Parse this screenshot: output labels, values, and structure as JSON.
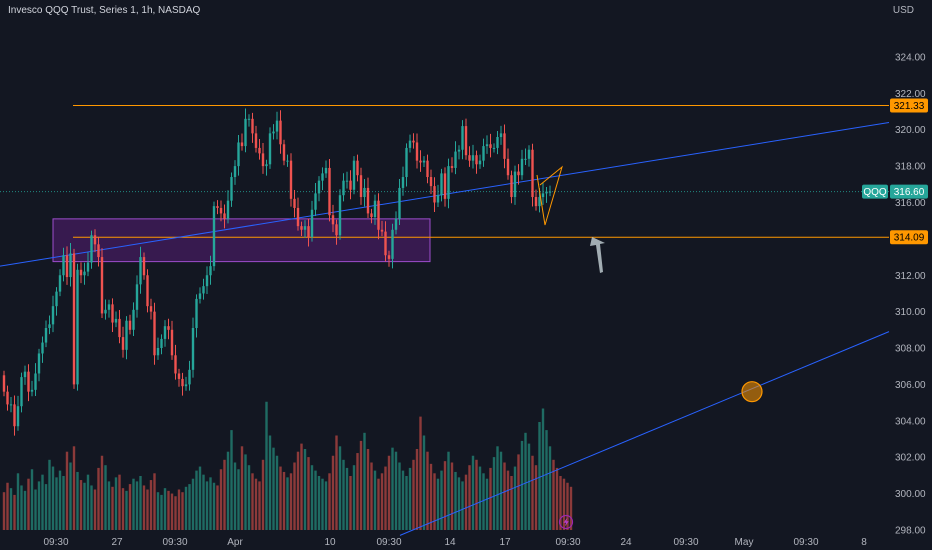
{
  "header": {
    "title": "Invesco QQQ Trust, Series 1, 1h, NASDAQ",
    "currency": "USD"
  },
  "colors": {
    "background": "#131722",
    "up": "#26a69a",
    "down": "#ef5350",
    "up_volume": "#1f6b63",
    "down_volume": "#8c3a3a",
    "level_line": "#ff9800",
    "trend_line": "#2962ff",
    "zone_fill": "#7b1fa2",
    "arrow": "#b2bec3",
    "axis_text": "#b2b5be"
  },
  "icons": {
    "flash": "lightning-icon"
  },
  "chart_data": {
    "type": "candlestick",
    "title": "Invesco QQQ Trust, Series 1, 1h, NASDAQ",
    "ylim": [
      297.5,
      326.5
    ],
    "y_ticks": [
      "298.00",
      "300.00",
      "302.00",
      "304.00",
      "306.00",
      "308.00",
      "310.00",
      "312.00",
      "316.00",
      "318.00",
      "320.00",
      "322.00",
      "324.00"
    ],
    "x_ticks": [
      "09:30",
      "27",
      "09:30",
      "Apr",
      "10",
      "09:30",
      "14",
      "17",
      "09:30",
      "24",
      "09:30",
      "May",
      "09:30",
      "8",
      "09:30"
    ],
    "grid": false,
    "price_tags": [
      {
        "label": "321.33",
        "price": 321.33,
        "kind": "level"
      },
      {
        "label": "QQQ",
        "price": 316.6,
        "kind": "symbol"
      },
      {
        "label": "316.60",
        "price": 316.6,
        "kind": "last"
      },
      {
        "label": "314.09",
        "price": 314.09,
        "kind": "level"
      }
    ],
    "horizontal_levels": [
      321.33,
      314.09
    ],
    "last_price": 316.6,
    "zone": {
      "top": 315.1,
      "bottom": 312.75
    },
    "trendlines": [
      {
        "name": "",
        "from_bar": 0,
        "from_price": 312.5,
        "to_bar": 201,
        "to_price": 320.4
      },
      {
        "name": "",
        "from_bar": 95,
        "from_price": 297.7,
        "to_bar": 201,
        "to_price": 308.9
      }
    ],
    "marker": {
      "bar": 171,
      "price": 305.6
    },
    "series_open": [
      306.5,
      305.6,
      304.9,
      304.9,
      303.7,
      304.8,
      306.4,
      306.7,
      305.6,
      305.7,
      306.6,
      307.7,
      308.3,
      309.1,
      309.3,
      310.3,
      311.1,
      312.0,
      313.1,
      311.9,
      313.2,
      306.0,
      312.3,
      312.0,
      312.2,
      312.7,
      314.2,
      313.7,
      313.0,
      309.9,
      310.1,
      310.4,
      309.4,
      309.6,
      308.6,
      307.9,
      309.5,
      309.0,
      310.1,
      311.5,
      313.0,
      312.0,
      310.3,
      310.0,
      307.6,
      308.0,
      308.5,
      309.2,
      309.0,
      307.6,
      306.6,
      306.3,
      305.9,
      306.0,
      306.8,
      309.1,
      310.7,
      311.0,
      311.4,
      312.0,
      312.5,
      315.8,
      315.7,
      315.4,
      315.1,
      316.1,
      317.4,
      318.0,
      319.3,
      319.1,
      320.6,
      320.6,
      319.8,
      319.0,
      318.7,
      318.0,
      318.1,
      319.8,
      319.9,
      320.5,
      319.2,
      318.3,
      318.3,
      316.2,
      315.7,
      314.7,
      314.5,
      314.7,
      314.1,
      315.6,
      316.5,
      317.2,
      317.6,
      317.9,
      315.3,
      314.8,
      314.2,
      316.4,
      317.2,
      317.2,
      316.7,
      318.3,
      317.5,
      316.3,
      316.8,
      315.4,
      315.2,
      316.1,
      314.5,
      314.4,
      313.1,
      312.9,
      314.5,
      315.1,
      316.8,
      317.4,
      319.0,
      319.4,
      319.3,
      318.3,
      318.2,
      318.3,
      317.4,
      316.9,
      316.0,
      316.4,
      317.6,
      316.2,
      318.0,
      317.9,
      318.8,
      318.9,
      320.2,
      318.6,
      318.3,
      318.6,
      318.1,
      318.3,
      319.1,
      319.2,
      319.0,
      319.0,
      319.6,
      319.8,
      318.4,
      317.5,
      316.3,
      317.7,
      317.5,
      318.4,
      318.4,
      318.9,
      316.3,
      315.8,
      316.3,
      316.5,
      316.6
    ],
    "series_close": [
      305.6,
      304.9,
      304.9,
      303.7,
      304.8,
      306.4,
      306.7,
      305.6,
      305.7,
      306.6,
      307.7,
      308.3,
      309.1,
      309.3,
      310.3,
      311.1,
      312.0,
      313.1,
      311.9,
      313.2,
      306.0,
      312.3,
      312.0,
      312.2,
      312.7,
      314.2,
      313.7,
      313.0,
      309.9,
      310.1,
      310.4,
      309.4,
      309.6,
      308.6,
      307.9,
      309.5,
      309.0,
      310.1,
      311.5,
      313.0,
      312.0,
      310.3,
      310.0,
      307.6,
      308.0,
      308.5,
      309.2,
      309.0,
      307.6,
      306.6,
      306.3,
      305.9,
      306.0,
      306.8,
      309.1,
      310.7,
      311.0,
      311.4,
      312.0,
      312.5,
      315.8,
      315.7,
      315.4,
      315.1,
      316.1,
      317.4,
      318.0,
      319.3,
      319.1,
      320.6,
      320.6,
      319.8,
      319.0,
      318.7,
      318.0,
      318.1,
      319.8,
      319.9,
      320.5,
      319.2,
      318.3,
      318.3,
      316.2,
      315.7,
      314.7,
      314.5,
      314.7,
      314.1,
      315.6,
      316.5,
      317.2,
      317.6,
      317.9,
      315.3,
      314.8,
      314.2,
      316.4,
      317.2,
      317.2,
      316.7,
      318.3,
      317.5,
      316.3,
      316.8,
      315.4,
      315.2,
      316.1,
      314.5,
      314.4,
      313.1,
      312.9,
      314.5,
      315.1,
      316.8,
      317.4,
      319.0,
      319.4,
      319.3,
      318.3,
      318.2,
      318.3,
      317.4,
      316.9,
      316.0,
      316.4,
      317.6,
      316.2,
      318.0,
      317.9,
      318.8,
      318.9,
      320.2,
      318.6,
      318.3,
      318.6,
      318.1,
      318.3,
      319.1,
      319.2,
      319.0,
      319.0,
      319.6,
      319.8,
      318.4,
      317.5,
      316.3,
      317.7,
      317.5,
      318.4,
      318.4,
      318.9,
      316.3,
      315.8,
      316.3,
      316.5,
      316.6,
      316.6
    ],
    "volume": [
      0.28,
      0.35,
      0.31,
      0.26,
      0.42,
      0.33,
      0.29,
      0.38,
      0.45,
      0.3,
      0.36,
      0.41,
      0.34,
      0.52,
      0.47,
      0.39,
      0.44,
      0.4,
      0.58,
      0.5,
      0.62,
      0.43,
      0.37,
      0.35,
      0.41,
      0.33,
      0.3,
      0.46,
      0.55,
      0.48,
      0.36,
      0.32,
      0.39,
      0.41,
      0.31,
      0.29,
      0.34,
      0.38,
      0.36,
      0.4,
      0.33,
      0.3,
      0.37,
      0.42,
      0.28,
      0.26,
      0.31,
      0.29,
      0.27,
      0.25,
      0.3,
      0.28,
      0.32,
      0.34,
      0.38,
      0.44,
      0.47,
      0.41,
      0.36,
      0.39,
      0.35,
      0.33,
      0.45,
      0.52,
      0.58,
      0.74,
      0.5,
      0.45,
      0.62,
      0.56,
      0.48,
      0.42,
      0.38,
      0.36,
      0.52,
      0.95,
      0.7,
      0.61,
      0.55,
      0.47,
      0.43,
      0.39,
      0.42,
      0.5,
      0.58,
      0.64,
      0.6,
      0.54,
      0.48,
      0.44,
      0.4,
      0.38,
      0.36,
      0.42,
      0.55,
      0.7,
      0.62,
      0.52,
      0.46,
      0.4,
      0.48,
      0.57,
      0.66,
      0.72,
      0.6,
      0.5,
      0.44,
      0.38,
      0.42,
      0.47,
      0.55,
      0.61,
      0.58,
      0.5,
      0.44,
      0.4,
      0.46,
      0.52,
      0.6,
      0.84,
      0.7,
      0.58,
      0.49,
      0.42,
      0.38,
      0.44,
      0.51,
      0.58,
      0.5,
      0.43,
      0.39,
      0.36,
      0.41,
      0.48,
      0.55,
      0.52,
      0.47,
      0.42,
      0.38,
      0.46,
      0.54,
      0.62,
      0.58,
      0.5,
      0.44,
      0.4,
      0.47,
      0.56,
      0.66,
      0.72,
      0.64,
      0.55,
      0.48,
      0.8,
      0.9,
      0.74,
      0.62,
      0.52,
      0.46,
      0.4,
      0.38,
      0.35,
      0.32
    ]
  }
}
